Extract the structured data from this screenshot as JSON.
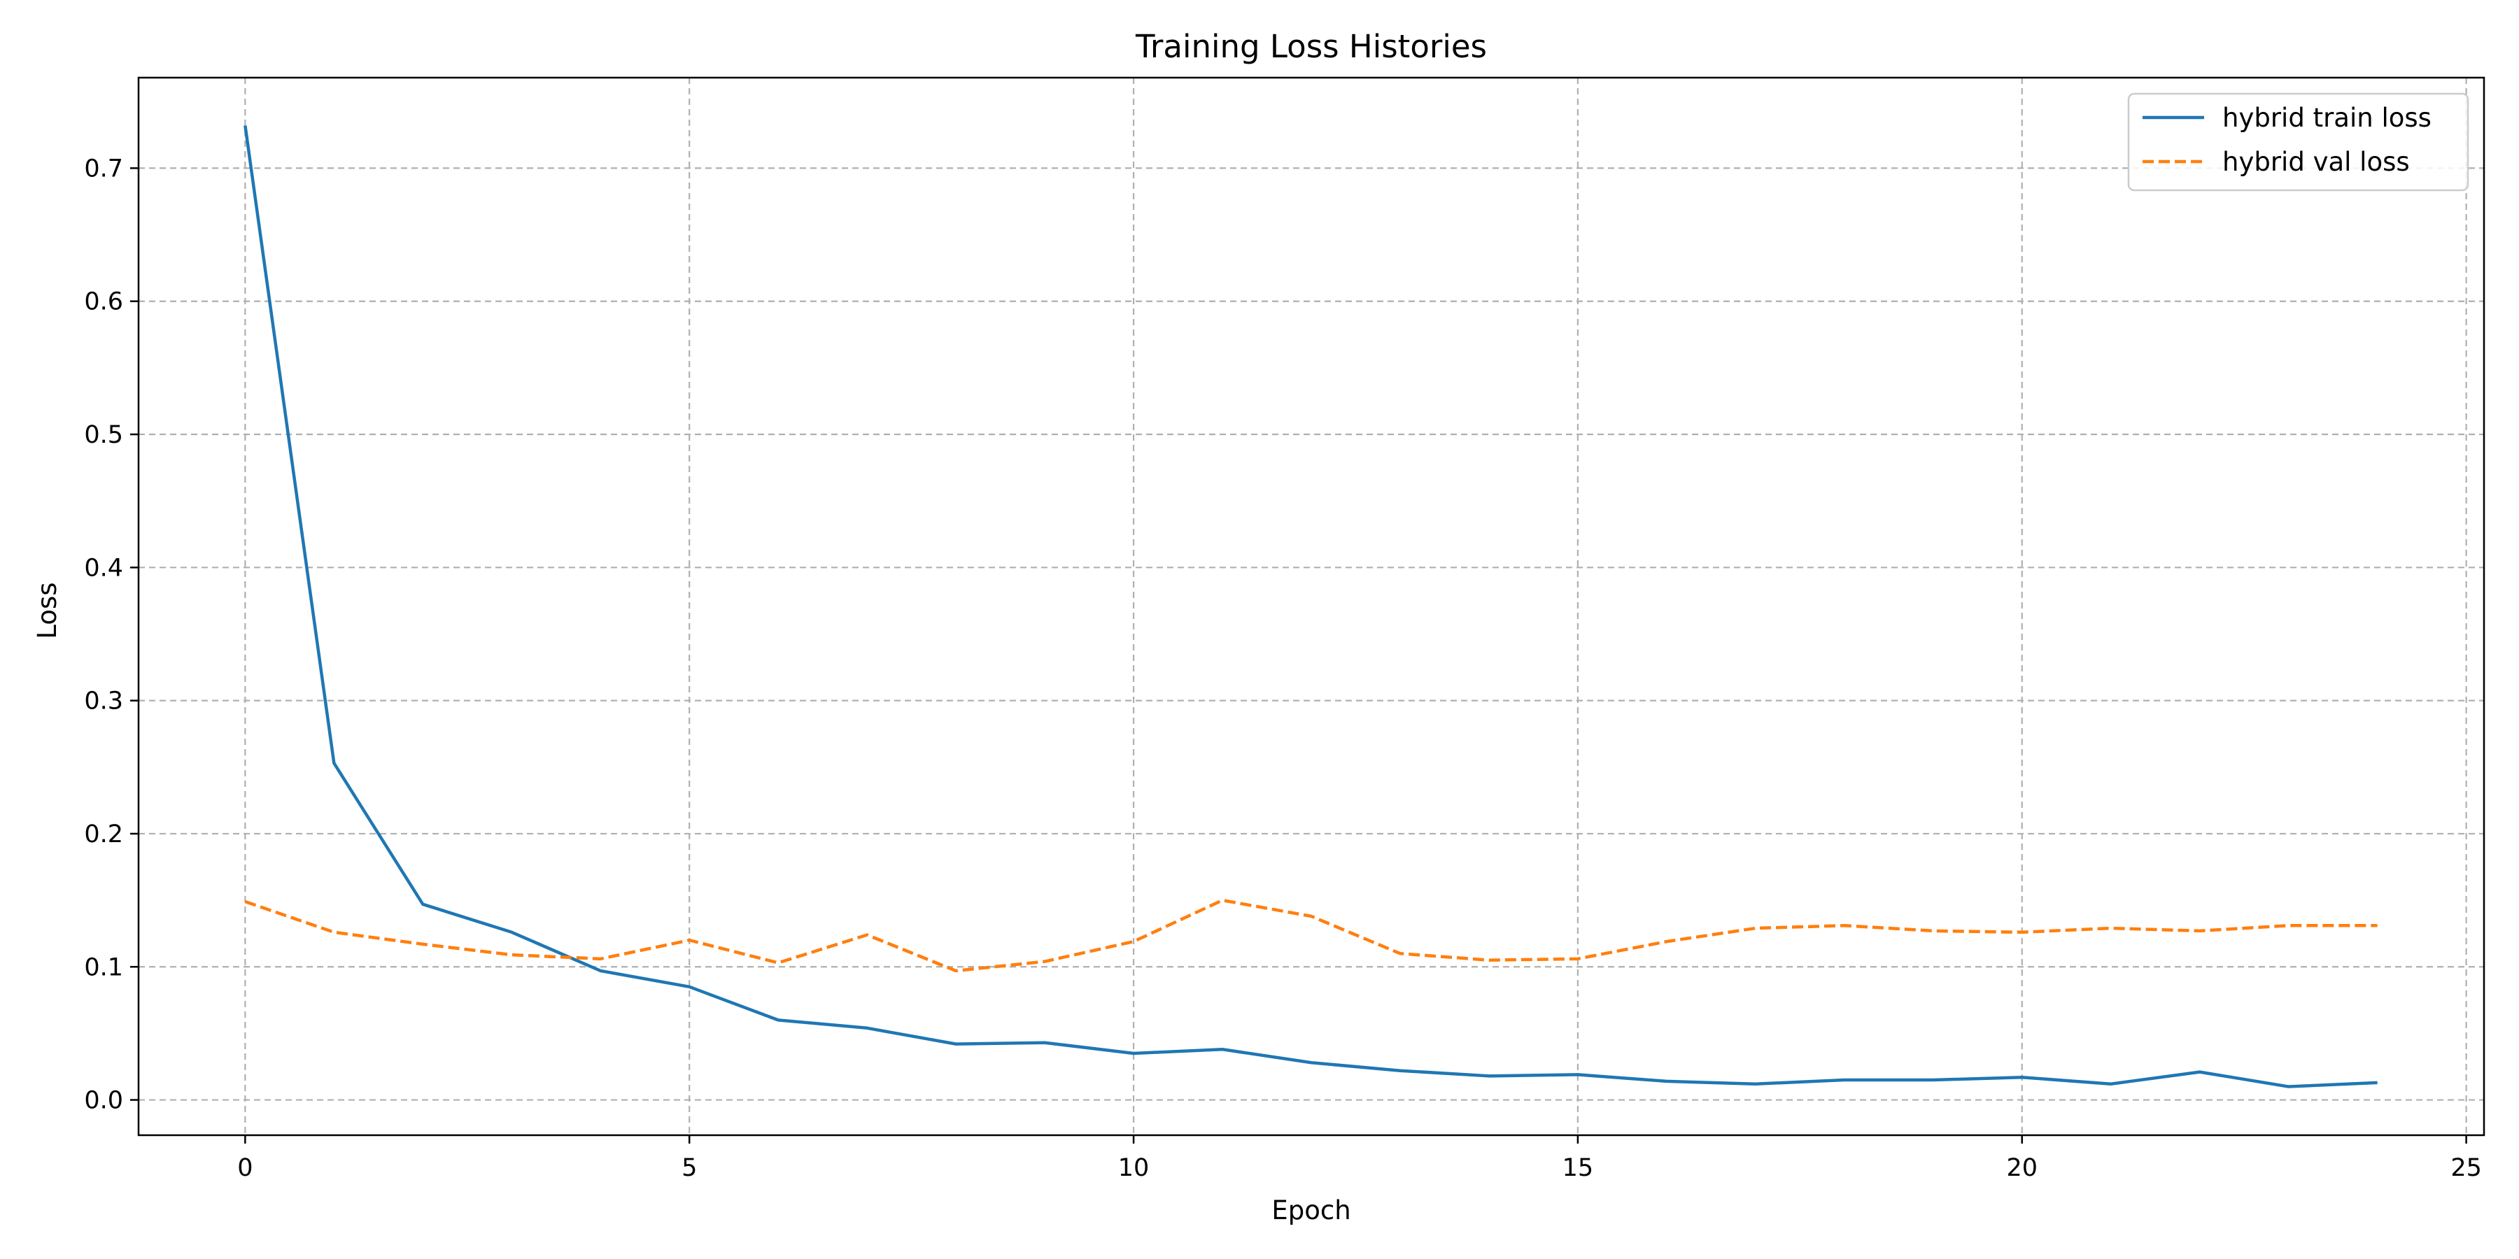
{
  "chart_data": {
    "type": "line",
    "title": "Training Loss Histories",
    "xlabel": "Epoch",
    "ylabel": "Loss",
    "xlim": [
      -1.2,
      25.2
    ],
    "ylim": [
      -0.0265,
      0.768
    ],
    "xticks": [
      0,
      5,
      10,
      15,
      20,
      25
    ],
    "yticks": [
      0.0,
      0.1,
      0.2,
      0.3,
      0.4,
      0.5,
      0.6,
      0.7
    ],
    "ytick_labels": [
      "0.0",
      "0.1",
      "0.2",
      "0.3",
      "0.4",
      "0.5",
      "0.6",
      "0.7"
    ],
    "grid": true,
    "legend_position": "top-right",
    "x": [
      0,
      1,
      2,
      3,
      4,
      5,
      6,
      7,
      8,
      9,
      10,
      11,
      12,
      13,
      14,
      15,
      16,
      17,
      18,
      19,
      20,
      21,
      22,
      23,
      24
    ],
    "series": [
      {
        "name": "hybrid train loss",
        "color": "#1f77b4",
        "style": "solid",
        "values": [
          0.732,
          0.253,
          0.147,
          0.126,
          0.097,
          0.085,
          0.06,
          0.054,
          0.042,
          0.043,
          0.035,
          0.038,
          0.028,
          0.022,
          0.018,
          0.019,
          0.014,
          0.012,
          0.015,
          0.015,
          0.017,
          0.012,
          0.021,
          0.01,
          0.013
        ]
      },
      {
        "name": "hybrid val loss",
        "color": "#ff7f0e",
        "style": "dashed",
        "values": [
          0.149,
          0.126,
          0.117,
          0.109,
          0.106,
          0.12,
          0.103,
          0.124,
          0.097,
          0.104,
          0.119,
          0.15,
          0.138,
          0.11,
          0.105,
          0.106,
          0.119,
          0.129,
          0.131,
          0.127,
          0.126,
          0.129,
          0.127,
          0.131,
          0.131
        ]
      }
    ]
  }
}
